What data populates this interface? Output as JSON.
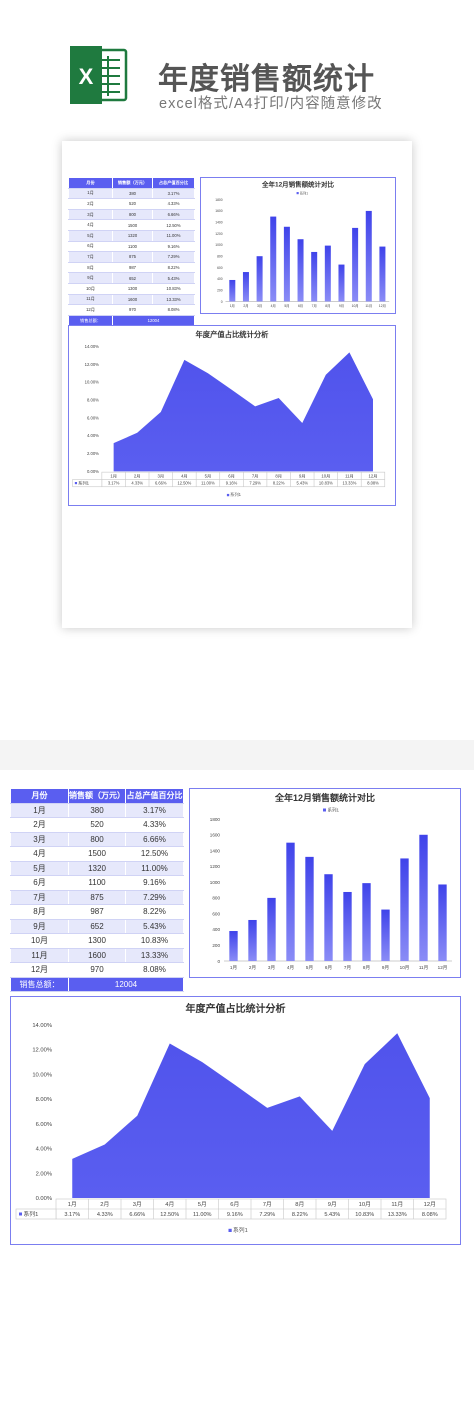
{
  "header": {
    "app_icon": "excel-icon",
    "app_icon_letter": "X",
    "title": "年度销售额统计",
    "subtitle": "excel格式/A4打印/内容随意修改"
  },
  "table": {
    "headers": [
      "月份",
      "销售额（万元）",
      "占总产值百分比"
    ],
    "rows": [
      {
        "month": "1月",
        "sales": "380",
        "pct": "3.17%"
      },
      {
        "month": "2月",
        "sales": "520",
        "pct": "4.33%"
      },
      {
        "month": "3月",
        "sales": "800",
        "pct": "6.66%"
      },
      {
        "month": "4月",
        "sales": "1500",
        "pct": "12.50%"
      },
      {
        "month": "5月",
        "sales": "1320",
        "pct": "11.00%"
      },
      {
        "month": "6月",
        "sales": "1100",
        "pct": "9.16%"
      },
      {
        "month": "7月",
        "sales": "875",
        "pct": "7.29%"
      },
      {
        "month": "8月",
        "sales": "987",
        "pct": "8.22%"
      },
      {
        "month": "9月",
        "sales": "652",
        "pct": "5.43%"
      },
      {
        "month": "10月",
        "sales": "1300",
        "pct": "10.83%"
      },
      {
        "month": "11月",
        "sales": "1600",
        "pct": "13.33%"
      },
      {
        "month": "12月",
        "sales": "970",
        "pct": "8.08%"
      }
    ],
    "total_label": "销售总额：",
    "total_value": "12004"
  },
  "chart_data": [
    {
      "type": "bar",
      "title": "全年12月销售额统计对比",
      "categories": [
        "1月",
        "2月",
        "3月",
        "4月",
        "5月",
        "6月",
        "7月",
        "8月",
        "9月",
        "10月",
        "11月",
        "12月"
      ],
      "series": [
        {
          "name": "系列1",
          "values": [
            380,
            520,
            800,
            1500,
            1320,
            1100,
            875,
            987,
            652,
            1300,
            1600,
            970
          ]
        }
      ],
      "ylim": [
        0,
        1800
      ],
      "yticks": [
        "0",
        "200",
        "400",
        "600",
        "800",
        "1000",
        "1200",
        "1400",
        "1600",
        "1800"
      ],
      "legend": "top",
      "color": "#5a5ef0"
    },
    {
      "type": "area",
      "title": "年度产值占比统计分析",
      "categories": [
        "1月",
        "2月",
        "3月",
        "4月",
        "5月",
        "6月",
        "7月",
        "8月",
        "9月",
        "10月",
        "11月",
        "12月"
      ],
      "series": [
        {
          "name": "系列1",
          "values": [
            3.17,
            4.33,
            6.66,
            12.5,
            11.0,
            9.16,
            7.29,
            8.22,
            5.43,
            10.83,
            13.33,
            8.08
          ],
          "labels": [
            "3.17%",
            "4.33%",
            "6.66%",
            "12.50%",
            "11.00%",
            "9.16%",
            "7.29%",
            "8.22%",
            "5.43%",
            "10.83%",
            "13.33%",
            "8.08%"
          ]
        }
      ],
      "ylim": [
        0,
        14
      ],
      "yticks": [
        "0.00%",
        "2.00%",
        "4.00%",
        "6.00%",
        "8.00%",
        "10.00%",
        "12.00%",
        "14.00%"
      ],
      "data_table": true,
      "legend": "bottom",
      "color": "#5a5ef0"
    }
  ]
}
